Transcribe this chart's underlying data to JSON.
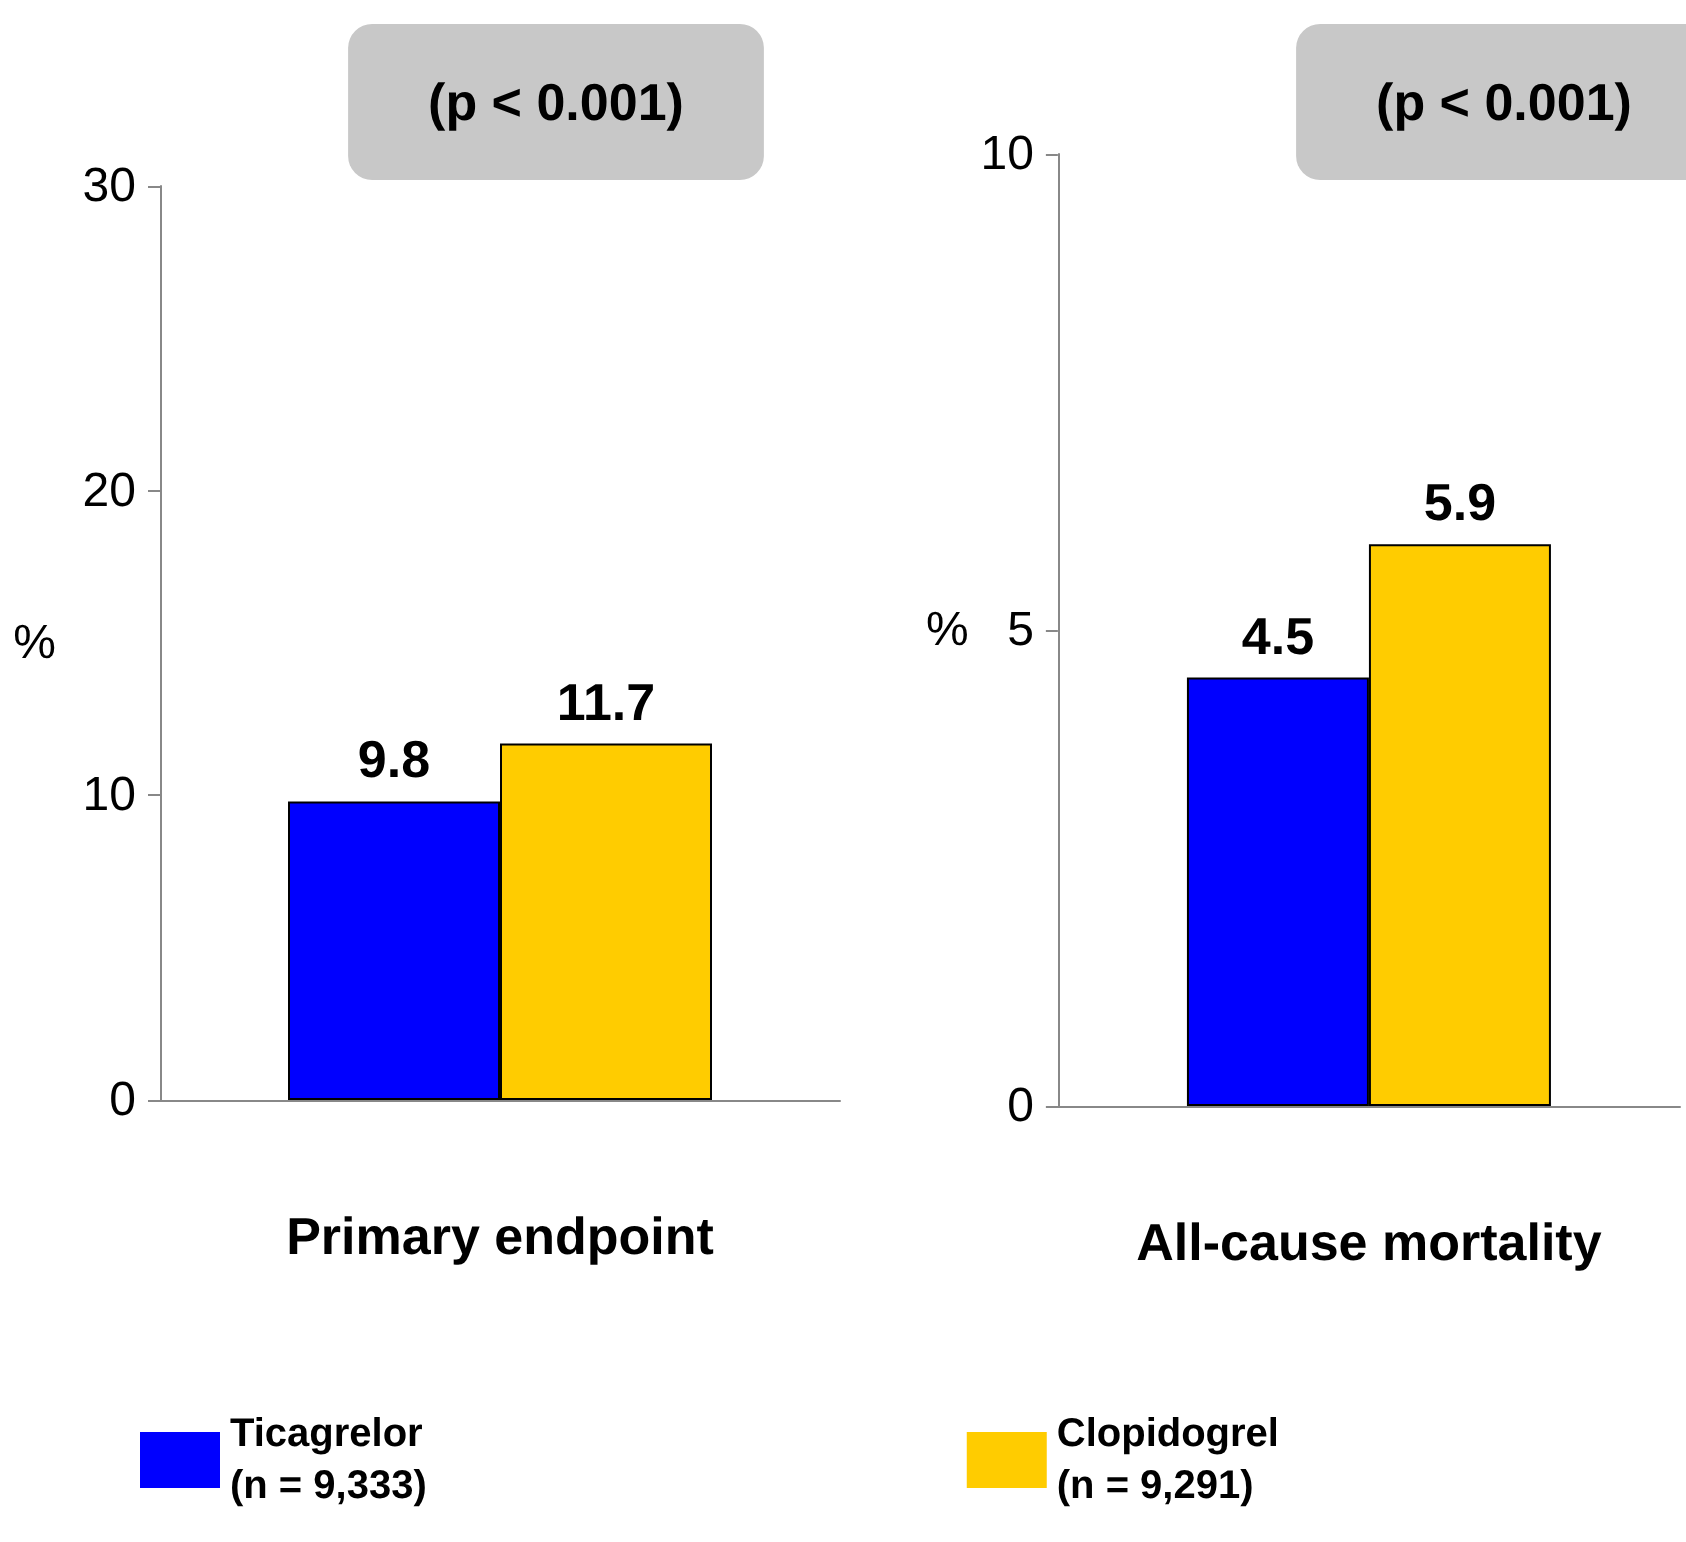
{
  "chart_data": [
    {
      "type": "bar",
      "annotations": [
        "(p < 0.001)"
      ],
      "ylabel": "%",
      "categories": [
        "Primary endpoint"
      ],
      "series": [
        {
          "name": "Ticagrelor\n(n = 9,333)",
          "color": "#0000ff",
          "values": [
            9.8
          ]
        },
        {
          "name": "Clopidogrel\n(n = 9,291)",
          "color": "#ffcc00",
          "values": [
            11.7
          ]
        }
      ],
      "ylim": [
        0,
        30
      ],
      "yticks": [
        0,
        10,
        20,
        30
      ],
      "data_labels": true,
      "legend": "bottom"
    },
    {
      "type": "bar",
      "annotations": [
        "(p < 0.001)"
      ],
      "ylabel": "%",
      "categories": [
        "All-cause mortality"
      ],
      "series": [
        {
          "color": "#0000ff",
          "values": [
            4.5
          ]
        },
        {
          "color": "#ffcc00",
          "values": [
            5.9
          ]
        }
      ],
      "ylim": [
        0,
        10
      ],
      "yticks": [
        0,
        5,
        10
      ],
      "data_labels": true
    }
  ]
}
